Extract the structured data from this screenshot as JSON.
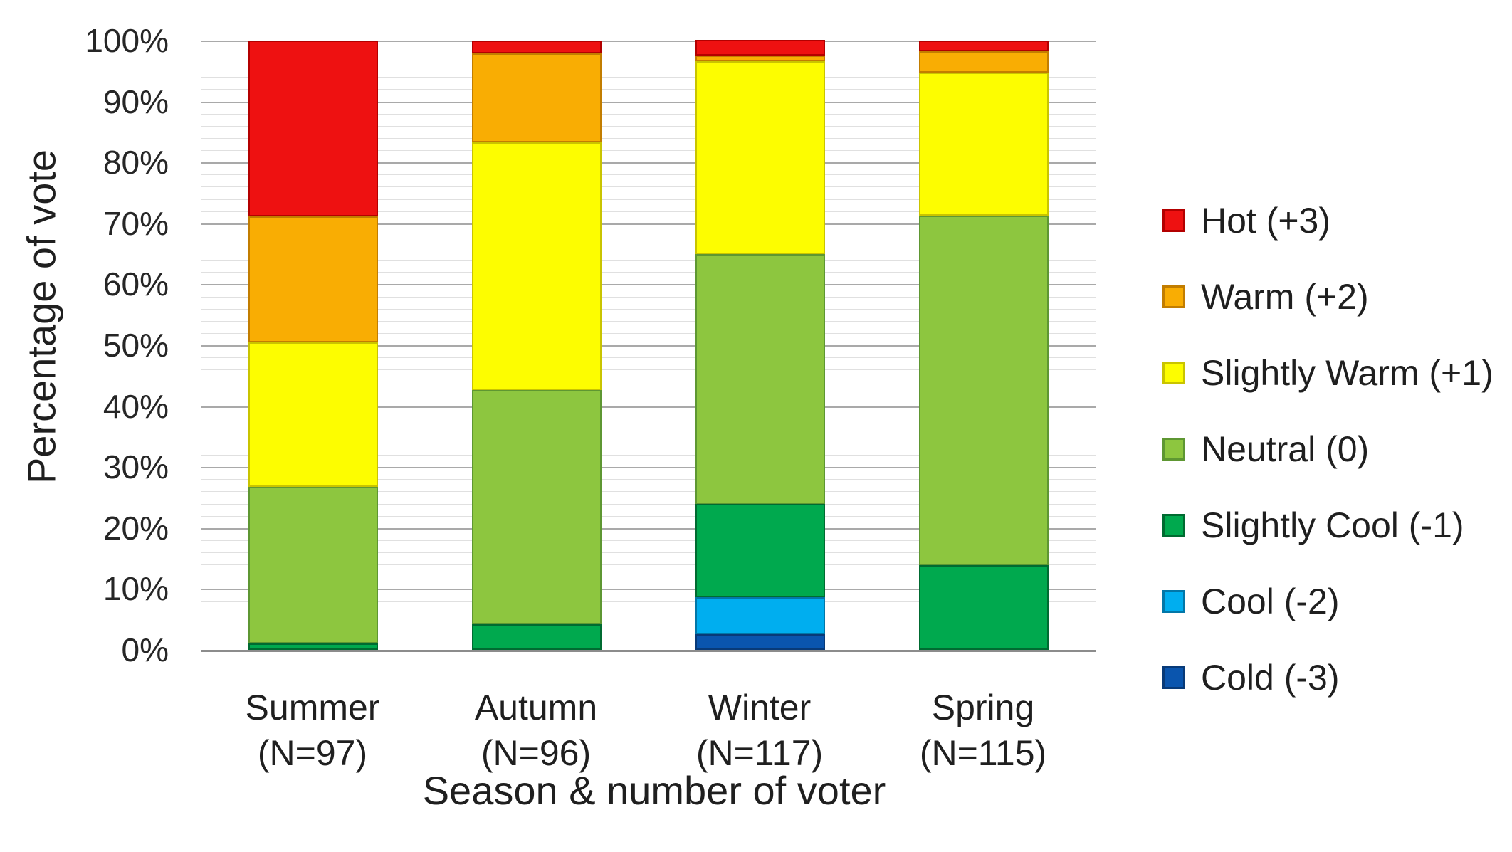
{
  "chart_data": {
    "type": "bar",
    "stacked": true,
    "stack_unit": "percent",
    "ylabel": "Percentage of vote",
    "xlabel": "Season & number of voter",
    "ylim": [
      0,
      100
    ],
    "y_major_step": 10,
    "y_minor_step": 2,
    "y_tick_suffix": "%",
    "grid": "horizontal major+minor",
    "legend_position": "right",
    "categories": [
      {
        "label": "Summer",
        "sublabel": "(N=97)",
        "n": 97
      },
      {
        "label": "Autumn",
        "sublabel": "(N=96)",
        "n": 96
      },
      {
        "label": "Winter",
        "sublabel": "(N=117)",
        "n": 117
      },
      {
        "label": "Spring",
        "sublabel": "(N=115)",
        "n": 115
      }
    ],
    "series": [
      {
        "name": "Hot (+3)",
        "color": "#ee1111",
        "border": "#b30000",
        "values": [
          28.9,
          2.1,
          2.6,
          1.7
        ]
      },
      {
        "name": "Warm (+2)",
        "color": "#f9ad03",
        "border": "#c27d00",
        "values": [
          20.6,
          14.6,
          0.9,
          3.5
        ]
      },
      {
        "name": "Slightly Warm (+1)",
        "color": "#fdfd00",
        "border": "#c9c400",
        "values": [
          23.7,
          40.6,
          31.6,
          23.5
        ]
      },
      {
        "name": "Neutral (0)",
        "color": "#8dc63f",
        "border": "#5e9732",
        "values": [
          25.8,
          38.5,
          41.0,
          57.4
        ]
      },
      {
        "name": "Slightly Cool (-1)",
        "color": "#00a94e",
        "border": "#006b31",
        "values": [
          1.0,
          4.2,
          15.4,
          13.9
        ]
      },
      {
        "name": "Cool (-2)",
        "color": "#00aeef",
        "border": "#0277a8",
        "values": [
          0,
          0,
          6.0,
          0
        ]
      },
      {
        "name": "Cold (-3)",
        "color": "#0a55ae",
        "border": "#083a78",
        "values": [
          0,
          0,
          2.6,
          0
        ]
      }
    ],
    "grid_colors": {
      "minor": "#e0e0e0",
      "major": "#a9a9a9",
      "axis": "#8c8c8c"
    }
  }
}
